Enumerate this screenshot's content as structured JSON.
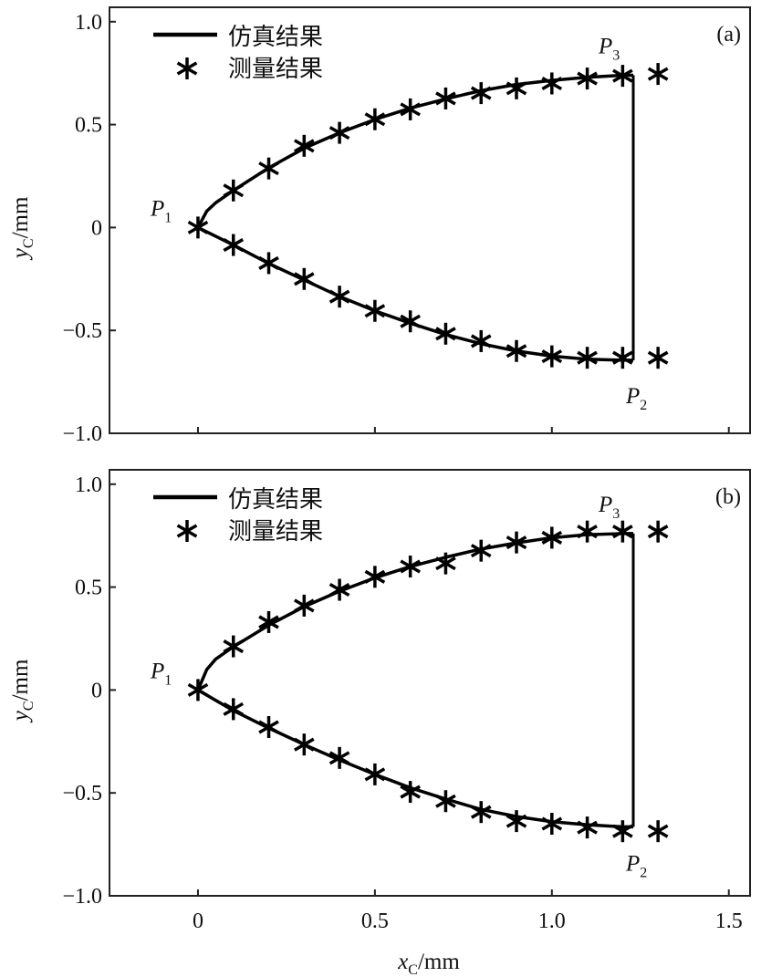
{
  "chart_data": [
    {
      "type": "line",
      "panel_label": "(a)",
      "xlabel_main": "x",
      "xlabel_sub": "C",
      "xlabel_unit": "/mm",
      "ylabel_main": "y",
      "ylabel_sub": "C",
      "ylabel_unit": "/mm",
      "xlim": [
        -0.25,
        1.56
      ],
      "ylim": [
        -1.0,
        1.07
      ],
      "xticks": [
        "0",
        "0.5",
        "1.0",
        "1.5"
      ],
      "xtick_values": [
        0,
        0.5,
        1.0,
        1.5
      ],
      "yticks": [
        "1.0",
        "0.5",
        "0",
        "−0.5",
        "−1.0"
      ],
      "ytick_values": [
        1.0,
        0.5,
        0,
        -0.5,
        -1.0
      ],
      "legend": {
        "simulation": "仿真结果",
        "measurement": "测量结果",
        "placement": "top-left"
      },
      "point_labels": [
        {
          "main": "P",
          "sub": "1",
          "x": 0,
          "y": 0
        },
        {
          "main": "P",
          "sub": "2",
          "x": 1.23,
          "y": -0.64
        },
        {
          "main": "P",
          "sub": "3",
          "x": 1.23,
          "y": 0.74
        }
      ],
      "simulation": {
        "upper": {
          "x": [
            0,
            0.025,
            0.05,
            0.1,
            0.2,
            0.3,
            0.4,
            0.5,
            0.6,
            0.7,
            0.8,
            0.9,
            1.0,
            1.1,
            1.2,
            1.23
          ],
          "y": [
            0,
            0.08,
            0.12,
            0.18,
            0.29,
            0.385,
            0.46,
            0.525,
            0.58,
            0.625,
            0.665,
            0.695,
            0.715,
            0.73,
            0.74,
            0.74
          ]
        },
        "lower": {
          "x": [
            0,
            0.1,
            0.2,
            0.3,
            0.4,
            0.5,
            0.6,
            0.7,
            0.8,
            0.9,
            1.0,
            1.1,
            1.2,
            1.23
          ],
          "y": [
            0,
            -0.085,
            -0.175,
            -0.255,
            -0.335,
            -0.405,
            -0.465,
            -0.52,
            -0.565,
            -0.6,
            -0.625,
            -0.64,
            -0.645,
            -0.645
          ]
        },
        "closing_x": 1.23
      },
      "measurement": {
        "upper": {
          "x": [
            0,
            0.1,
            0.2,
            0.3,
            0.4,
            0.5,
            0.6,
            0.7,
            0.8,
            0.9,
            1.0,
            1.1,
            1.2,
            1.3
          ],
          "y": [
            0,
            0.18,
            0.287,
            0.397,
            0.46,
            0.526,
            0.574,
            0.627,
            0.653,
            0.676,
            0.7,
            0.724,
            0.737,
            0.746
          ]
        },
        "lower": {
          "x": [
            0.1,
            0.2,
            0.3,
            0.4,
            0.5,
            0.6,
            0.7,
            0.8,
            0.9,
            1.0,
            1.1,
            1.2,
            1.3
          ],
          "y": [
            -0.085,
            -0.173,
            -0.25,
            -0.336,
            -0.405,
            -0.456,
            -0.516,
            -0.552,
            -0.6,
            -0.626,
            -0.633,
            -0.633,
            -0.633
          ]
        }
      }
    },
    {
      "type": "line",
      "panel_label": "(b)",
      "xlabel_main": "x",
      "xlabel_sub": "C",
      "xlabel_unit": "/mm",
      "ylabel_main": "y",
      "ylabel_sub": "C",
      "ylabel_unit": "/mm",
      "xlim": [
        -0.25,
        1.56
      ],
      "ylim": [
        -1.0,
        1.07
      ],
      "xticks": [
        "0",
        "0.5",
        "1.0",
        "1.5"
      ],
      "xtick_values": [
        0,
        0.5,
        1.0,
        1.5
      ],
      "yticks": [
        "1.0",
        "0.5",
        "0",
        "−0.5",
        "−1.0"
      ],
      "ytick_values": [
        1.0,
        0.5,
        0,
        -0.5,
        -1.0
      ],
      "legend": {
        "simulation": "仿真结果",
        "measurement": "测量结果",
        "placement": "top-left"
      },
      "point_labels": [
        {
          "main": "P",
          "sub": "1",
          "x": 0,
          "y": 0
        },
        {
          "main": "P",
          "sub": "2",
          "x": 1.23,
          "y": -0.665
        },
        {
          "main": "P",
          "sub": "3",
          "x": 1.23,
          "y": 0.76
        }
      ],
      "simulation": {
        "upper": {
          "x": [
            0,
            0.025,
            0.05,
            0.1,
            0.2,
            0.3,
            0.4,
            0.5,
            0.6,
            0.7,
            0.8,
            0.9,
            1.0,
            1.1,
            1.2,
            1.23
          ],
          "y": [
            0,
            0.1,
            0.15,
            0.21,
            0.315,
            0.405,
            0.48,
            0.545,
            0.6,
            0.645,
            0.685,
            0.715,
            0.74,
            0.755,
            0.76,
            0.76
          ]
        },
        "lower": {
          "x": [
            0,
            0.1,
            0.2,
            0.3,
            0.4,
            0.5,
            0.6,
            0.7,
            0.8,
            0.9,
            1.0,
            1.1,
            1.2,
            1.23
          ],
          "y": [
            0,
            -0.1,
            -0.185,
            -0.265,
            -0.34,
            -0.41,
            -0.475,
            -0.53,
            -0.58,
            -0.615,
            -0.64,
            -0.655,
            -0.665,
            -0.665
          ]
        },
        "closing_x": 1.23
      },
      "measurement": {
        "upper": {
          "x": [
            0,
            0.1,
            0.2,
            0.3,
            0.4,
            0.5,
            0.6,
            0.7,
            0.8,
            0.9,
            1.0,
            1.1,
            1.2,
            1.3
          ],
          "y": [
            0,
            0.212,
            0.33,
            0.41,
            0.487,
            0.55,
            0.6,
            0.615,
            0.677,
            0.717,
            0.74,
            0.77,
            0.77,
            0.77
          ]
        },
        "lower": {
          "x": [
            0.1,
            0.2,
            0.3,
            0.4,
            0.5,
            0.6,
            0.7,
            0.8,
            0.9,
            1.0,
            1.1,
            1.2,
            1.3
          ],
          "y": [
            -0.093,
            -0.18,
            -0.265,
            -0.33,
            -0.41,
            -0.495,
            -0.54,
            -0.593,
            -0.637,
            -0.65,
            -0.668,
            -0.686,
            -0.686
          ]
        }
      }
    }
  ]
}
